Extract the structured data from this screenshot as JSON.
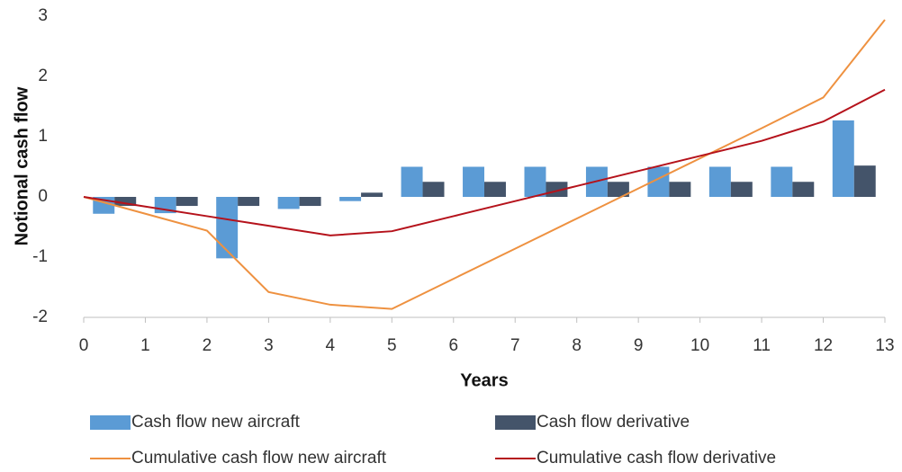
{
  "chart_data": {
    "type": "bar-line",
    "xlabel": "Years",
    "ylabel": "Notional cash flow",
    "xlim": [
      0,
      13
    ],
    "xticks": [
      0,
      1,
      2,
      3,
      4,
      5,
      6,
      7,
      8,
      9,
      10,
      11,
      12,
      13
    ],
    "ylim": [
      -2,
      3
    ],
    "yticks": [
      -2,
      -1,
      0,
      1,
      2,
      3
    ],
    "legend": "bottom",
    "bar_series": [
      {
        "name": "Cash flow new aircraft",
        "color": "#5b9bd5",
        "x": [
          1,
          2,
          3,
          4,
          5,
          6,
          7,
          8,
          9,
          10,
          11,
          12,
          13
        ],
        "values": [
          -0.28,
          -0.27,
          -1.02,
          -0.2,
          -0.07,
          0.5,
          0.5,
          0.5,
          0.5,
          0.5,
          0.5,
          0.5,
          1.27
        ]
      },
      {
        "name": "Cash flow derivative",
        "color": "#44546a",
        "x": [
          1,
          2,
          3,
          4,
          5,
          6,
          7,
          8,
          9,
          10,
          11,
          12,
          13
        ],
        "values": [
          -0.15,
          -0.15,
          -0.15,
          -0.15,
          0.07,
          0.25,
          0.25,
          0.25,
          0.25,
          0.25,
          0.25,
          0.25,
          0.52
        ]
      }
    ],
    "line_series": [
      {
        "name": "Cumulative cash flow new aircraft",
        "color": "#ee9140",
        "x": [
          0,
          1,
          2,
          3,
          4,
          5,
          6,
          7,
          8,
          9,
          10,
          11,
          12,
          13
        ],
        "values": [
          0,
          -0.28,
          -0.56,
          -1.58,
          -1.79,
          -1.86,
          -1.36,
          -0.86,
          -0.36,
          0.14,
          0.64,
          1.14,
          1.65,
          2.94
        ]
      },
      {
        "name": "Cumulative cash flow derivative",
        "color": "#b5121b",
        "x": [
          0,
          1,
          2,
          3,
          4,
          5,
          6,
          7,
          8,
          9,
          10,
          11,
          12,
          13
        ],
        "values": [
          0,
          -0.16,
          -0.32,
          -0.48,
          -0.64,
          -0.57,
          -0.32,
          -0.07,
          0.18,
          0.43,
          0.68,
          0.93,
          1.25,
          1.78
        ]
      }
    ]
  }
}
